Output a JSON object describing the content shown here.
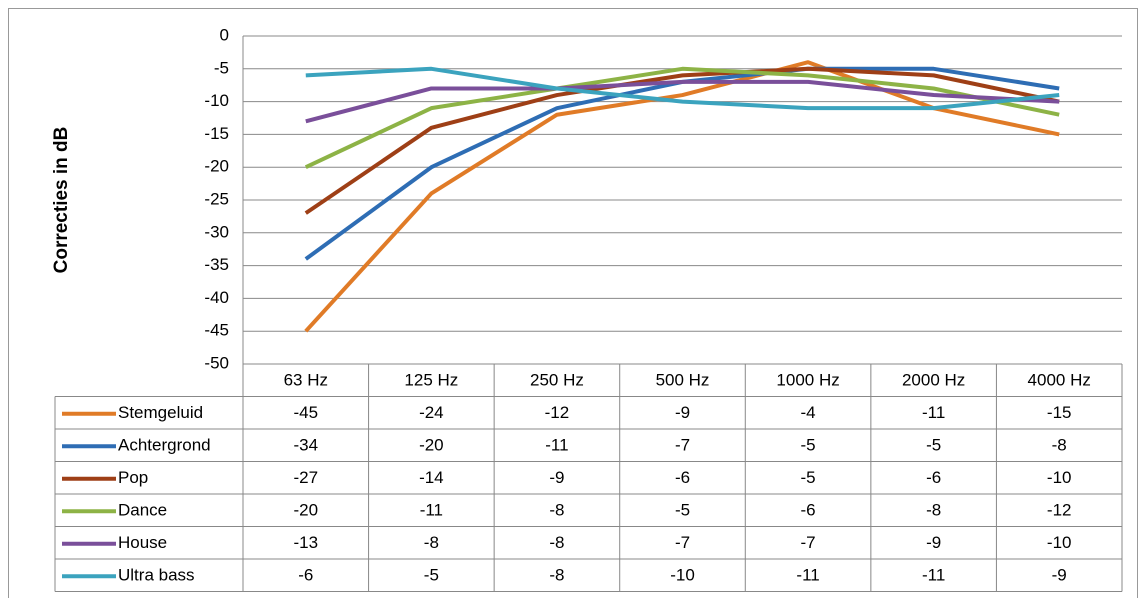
{
  "chart_data": {
    "type": "line",
    "y_label": "Correcties in dB",
    "categories": [
      "63 Hz",
      "125 Hz",
      "250 Hz",
      "500 Hz",
      "1000 Hz",
      "2000 Hz",
      "4000 Hz"
    ],
    "series": [
      {
        "name": "Stemgeluid",
        "color": "#e07b27",
        "values": [
          -45,
          -24,
          -12,
          -9,
          -4,
          -11,
          -15
        ]
      },
      {
        "name": "Achtergrond",
        "color": "#2e6db4",
        "values": [
          -34,
          -20,
          -11,
          -7,
          -5,
          -5,
          -8
        ]
      },
      {
        "name": "Pop",
        "color": "#9e3f16",
        "values": [
          -27,
          -14,
          -9,
          -6,
          -5,
          -6,
          -10
        ]
      },
      {
        "name": "Dance",
        "color": "#8db346",
        "values": [
          -20,
          -11,
          -8,
          -5,
          -6,
          -8,
          -12
        ]
      },
      {
        "name": "House",
        "color": "#7a4f9a",
        "values": [
          -13,
          -8,
          -8,
          -7,
          -7,
          -9,
          -10
        ]
      },
      {
        "name": "Ultra bass",
        "color": "#3ba3be",
        "values": [
          -6,
          -5,
          -8,
          -10,
          -11,
          -11,
          -9
        ]
      }
    ],
    "ylim": [
      -50,
      0
    ],
    "yticks": [
      0,
      -5,
      -10,
      -15,
      -20,
      -25,
      -30,
      -35,
      -40,
      -45,
      -50
    ],
    "grid": true
  }
}
